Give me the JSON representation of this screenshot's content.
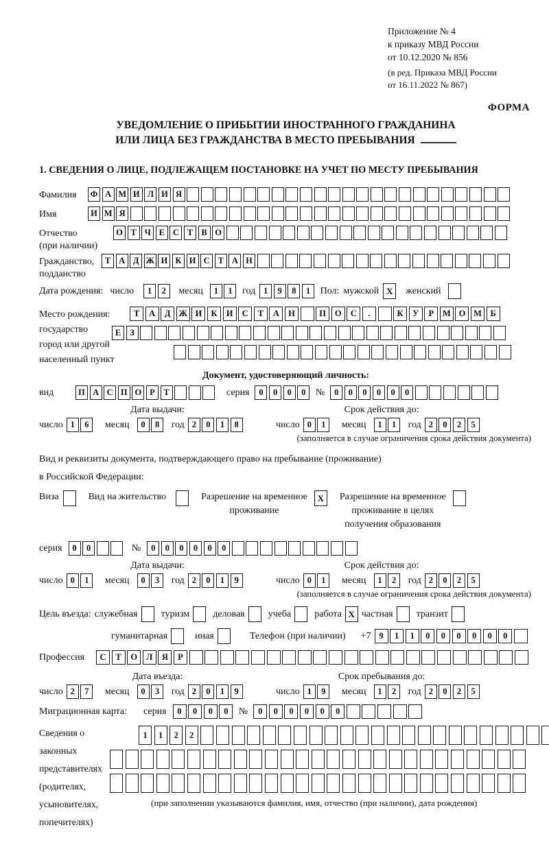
{
  "header": {
    "lines": [
      "Приложение № 4",
      "к приказу МВД России",
      "от 10.12.2020 № 856"
    ],
    "sub_lines": [
      "(в ред. Приказа МВД России",
      "от 16.11.2022 № 867)"
    ],
    "form_label": "ФОРМА"
  },
  "title": {
    "line1": "УВЕДОМЛЕНИЕ О ПРИБЫТИИ ИНОСТРАННОГО ГРАЖДАНИНА",
    "line2": "ИЛИ ЛИЦА БЕЗ ГРАЖДАНСТВА В МЕСТО ПРЕБЫВАНИЯ"
  },
  "section1_heading": "1. СВЕДЕНИЯ О ЛИЦЕ, ПОДЛЕЖАЩЕМ ПОСТАНОВКЕ НА УЧЕТ ПО МЕСТУ ПРЕБЫВАНИЯ",
  "date_labels": {
    "day": "число",
    "month": "месяц",
    "year": "год"
  },
  "person": {
    "surname": {
      "label": "Фамилия",
      "cells": {
        "text": "ФАМИЛИЯ",
        "total": 30
      }
    },
    "firstname": {
      "label": "Имя",
      "cells": {
        "text": "ИМЯ",
        "total": 30
      }
    },
    "patronymic": {
      "label": [
        "Отчество",
        "(при наличии)"
      ],
      "cells": {
        "text": "ОТЧЕСТВО",
        "total": 28
      }
    },
    "citizenship": {
      "label": [
        "Гражданство,",
        "подданство"
      ],
      "cells": {
        "text": "ТАДЖИКИСТАН",
        "total": 29
      }
    },
    "birth_date": {
      "label": "Дата рождения:",
      "day": "12",
      "month": "11",
      "year": "1981"
    },
    "sex": {
      "label": "Пол:",
      "male_label": "мужской",
      "male_value": "X",
      "female_label": "женский",
      "female_value": ""
    },
    "birth_place": {
      "label": [
        "Место рождения:",
        "государство",
        "город или другой",
        "населенный пункт"
      ],
      "rows": [
        {
          "text": "ТАДЖИКИСТАН ПОС. КУРМОМБ",
          "total": 24
        },
        {
          "text": "ЕЗ",
          "total": 28
        },
        {
          "text": "",
          "total": 24
        }
      ]
    }
  },
  "identity_doc": {
    "heading": "Документ, удостоверяющий личность:",
    "kind": {
      "label": "вид",
      "cells": {
        "text": "ПАСПОРТ",
        "total": 10
      }
    },
    "series": {
      "label": "серия",
      "cells": {
        "text": "0000",
        "total": 4
      }
    },
    "number": {
      "label": "№",
      "cells": {
        "text": "000000",
        "total": 12
      }
    },
    "issue": {
      "heading": "Дата выдачи:",
      "day": "16",
      "month": "08",
      "year": "2018"
    },
    "valid": {
      "heading": "Срок действия до:",
      "day": "01",
      "month": "11",
      "year": "2025"
    },
    "valid_note": "(заполняется в случае ограничения срока действия документа)"
  },
  "residence_doc": {
    "intro_line1": "Вид и реквизиты документа, подтверждающего право на пребывание (проживание)",
    "intro_line2": "в Российской Федерации:",
    "options": [
      {
        "label": [
          "Виза"
        ],
        "value": ""
      },
      {
        "label": [
          "Вид на жительство"
        ],
        "value": ""
      },
      {
        "label": [
          "Разрешение на временное",
          "проживание"
        ],
        "value": "X"
      },
      {
        "label": [
          "Разрешение на временное",
          "проживание в целях",
          "получения образования"
        ],
        "value": ""
      }
    ],
    "series": {
      "label": "серия",
      "cells": {
        "text": "00",
        "total": 4
      }
    },
    "number": {
      "label": "№",
      "cells": {
        "text": "000000",
        "total": 15
      }
    },
    "issue": {
      "heading": "Дата выдачи:",
      "day": "01",
      "month": "03",
      "year": "2019"
    },
    "valid": {
      "heading": "Срок действия до:",
      "day": "01",
      "month": "12",
      "year": "2025"
    },
    "valid_note": "(заполняется в случае ограничения срока действия документа)"
  },
  "visit": {
    "purpose_label": "Цель въезда:",
    "options_row1": [
      {
        "label": "служебная",
        "value": ""
      },
      {
        "label": "туризм",
        "value": ""
      },
      {
        "label": "деловая",
        "value": ""
      },
      {
        "label": "учеба",
        "value": ""
      },
      {
        "label": "работа",
        "value": "X"
      },
      {
        "label": "частная",
        "value": ""
      },
      {
        "label": "транзит",
        "value": ""
      }
    ],
    "options_row2": [
      {
        "label": "гуманитарная",
        "value": ""
      },
      {
        "label": "иная",
        "value": ""
      }
    ],
    "phone_label": "Телефон (при наличии)",
    "phone_prefix": "+7",
    "phone_cells": {
      "text": "911000000",
      "total": 10
    },
    "profession": {
      "label": "Профессия",
      "cells": {
        "text": "СТОЛЯР",
        "total": 28
      }
    },
    "entry_date": {
      "heading": "Дата въезда:",
      "day": "27",
      "month": "03",
      "year": "2019"
    },
    "stay_until": {
      "heading": "Срок пребывания до:",
      "day": "19",
      "month": "12",
      "year": "2025"
    }
  },
  "migration_card": {
    "label": "Миграционная карта:",
    "series": {
      "label": "серия",
      "cells": {
        "text": "0000",
        "total": 4
      }
    },
    "number": {
      "label": "№",
      "cells": {
        "text": "000000",
        "total": 11
      }
    }
  },
  "representatives": {
    "label": [
      "Сведения о",
      "законных",
      "представителях",
      "(родителях,",
      "усыновителях,",
      "попечителях)"
    ],
    "rows": [
      {
        "text": "1122",
        "total": 27
      },
      {
        "text": "",
        "total": 27
      },
      {
        "text": "",
        "total": 27
      }
    ],
    "note": "(при заполнении указываются фамилия, имя, отчество (при наличии), дата рождения)"
  }
}
